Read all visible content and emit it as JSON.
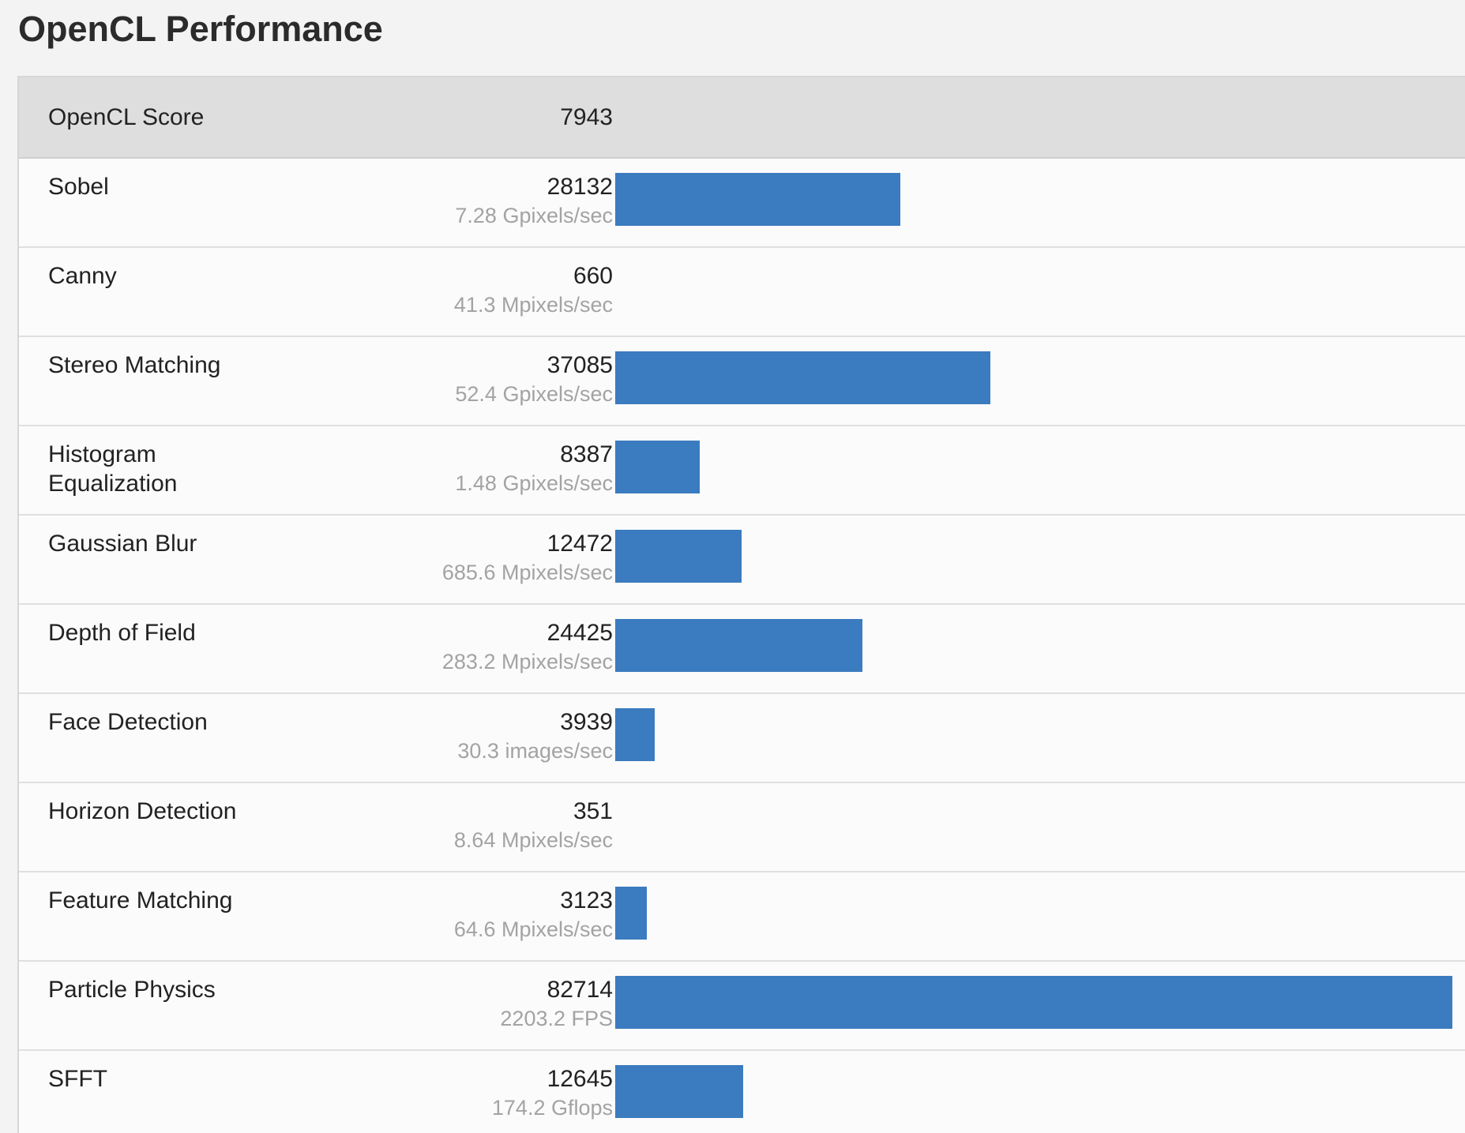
{
  "page": {
    "title": "OpenCL Performance"
  },
  "summary": {
    "label": "OpenCL Score",
    "score": "7943"
  },
  "colors": {
    "bar": "#3b7bbf",
    "header_bg": "#dedede",
    "rate_text": "#a3a3a3"
  },
  "chart_data": {
    "type": "bar",
    "orientation": "horizontal",
    "title": "OpenCL Performance",
    "max_value": 82714,
    "categories": [
      "Sobel",
      "Canny",
      "Stereo Matching",
      "Histogram\nEqualization",
      "Gaussian Blur",
      "Depth of Field",
      "Face Detection",
      "Horizon Detection",
      "Feature Matching",
      "Particle Physics",
      "SFFT"
    ],
    "values": [
      28132,
      660,
      37085,
      8387,
      12472,
      24425,
      3939,
      351,
      3123,
      82714,
      12645
    ],
    "rows": [
      {
        "name": "Sobel",
        "score": "28132",
        "rate": "7.28 Gpixels/sec",
        "value": 28132,
        "bar": true
      },
      {
        "name": "Canny",
        "score": "660",
        "rate": "41.3 Mpixels/sec",
        "value": 660,
        "bar": false
      },
      {
        "name": "Stereo Matching",
        "score": "37085",
        "rate": "52.4 Gpixels/sec",
        "value": 37085,
        "bar": true
      },
      {
        "name": "Histogram\nEqualization",
        "score": "8387",
        "rate": "1.48 Gpixels/sec",
        "value": 8387,
        "bar": true
      },
      {
        "name": "Gaussian Blur",
        "score": "12472",
        "rate": "685.6 Mpixels/sec",
        "value": 12472,
        "bar": true
      },
      {
        "name": "Depth of Field",
        "score": "24425",
        "rate": "283.2 Mpixels/sec",
        "value": 24425,
        "bar": true
      },
      {
        "name": "Face Detection",
        "score": "3939",
        "rate": "30.3 images/sec",
        "value": 3939,
        "bar": true
      },
      {
        "name": "Horizon Detection",
        "score": "351",
        "rate": "8.64 Mpixels/sec",
        "value": 351,
        "bar": false
      },
      {
        "name": "Feature Matching",
        "score": "3123",
        "rate": "64.6 Mpixels/sec",
        "value": 3123,
        "bar": true
      },
      {
        "name": "Particle Physics",
        "score": "82714",
        "rate": "2203.2 FPS",
        "value": 82714,
        "bar": true
      },
      {
        "name": "SFFT",
        "score": "12645",
        "rate": "174.2 Gflops",
        "value": 12645,
        "bar": true
      }
    ]
  }
}
